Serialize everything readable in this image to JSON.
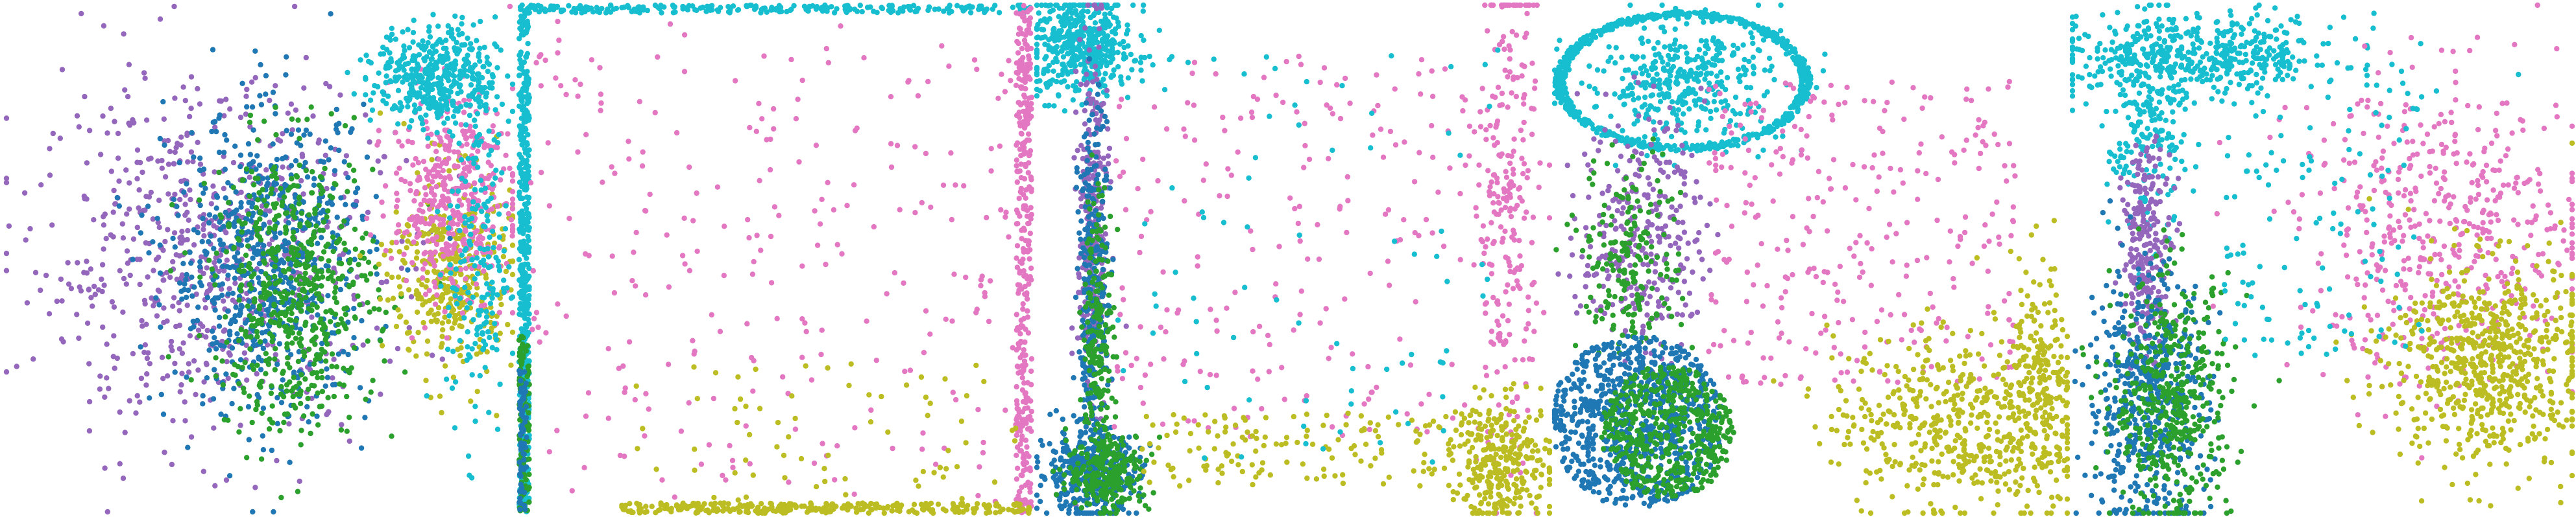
{
  "figure": {
    "panel_count": 5,
    "axes_visible": false,
    "background": "#ffffff"
  },
  "palette": {
    "blue": "#1f77b4",
    "green": "#2ca02c",
    "purple": "#9467bd",
    "pink": "#e377c2",
    "olive": "#bcbd22",
    "cyan": "#17becf"
  },
  "chart_data": [
    {
      "type": "scatter",
      "xlim": [
        0,
        1
      ],
      "ylim": [
        0,
        1
      ],
      "grid": false,
      "legend": "none",
      "clusters": [
        {
          "color": "purple",
          "cx": 0.4,
          "cy": 0.5,
          "sx": 0.17,
          "sy": 0.17,
          "n": 700,
          "style": "gauss"
        },
        {
          "color": "blue",
          "cx": 0.52,
          "cy": 0.49,
          "sx": 0.1,
          "sy": 0.15,
          "n": 700,
          "style": "gauss"
        },
        {
          "color": "green",
          "cx": 0.57,
          "cy": 0.44,
          "sx": 0.08,
          "sy": 0.14,
          "n": 600,
          "style": "gauss"
        },
        {
          "color": "olive",
          "cx": 0.88,
          "cy": 0.47,
          "sx": 0.06,
          "sy": 0.1,
          "n": 380,
          "style": "gauss"
        },
        {
          "color": "pink",
          "cx": 0.88,
          "cy": 0.62,
          "sx": 0.06,
          "sy": 0.1,
          "n": 420,
          "style": "gauss"
        },
        {
          "color": "cyan",
          "cx": 0.85,
          "cy": 0.86,
          "sx": 0.06,
          "sy": 0.05,
          "n": 450,
          "style": "gauss"
        },
        {
          "color": "cyan",
          "cx": 0.93,
          "cy": 0.5,
          "sx": 0.03,
          "sy": 0.18,
          "n": 200,
          "style": "gauss"
        }
      ]
    },
    {
      "type": "scatter",
      "xlim": [
        0,
        1
      ],
      "ylim": [
        0,
        1
      ],
      "grid": false,
      "legend": "none",
      "clusters": [
        {
          "color": "cyan",
          "x0": 0.0,
          "x1": 0.02,
          "y0": 0.0,
          "y1": 1.0,
          "n": 500,
          "style": "uniform"
        },
        {
          "color": "cyan",
          "x0": 0.0,
          "x1": 1.0,
          "y0": 0.985,
          "y1": 1.0,
          "n": 250,
          "style": "uniform"
        },
        {
          "color": "green",
          "x0": 0.0,
          "x1": 0.02,
          "y0": 0.0,
          "y1": 0.35,
          "n": 120,
          "style": "uniform"
        },
        {
          "color": "pink",
          "x0": 0.97,
          "x1": 1.0,
          "y0": 0.0,
          "y1": 1.0,
          "n": 350,
          "style": "uniform"
        },
        {
          "color": "pink",
          "x0": 0.02,
          "x1": 0.97,
          "y0": 0.02,
          "y1": 0.98,
          "n": 260,
          "style": "uniform"
        },
        {
          "color": "olive",
          "x0": 0.2,
          "x1": 1.0,
          "y0": 0.0,
          "y1": 0.02,
          "n": 300,
          "style": "uniform"
        },
        {
          "color": "olive",
          "x0": 0.2,
          "x1": 0.97,
          "y0": 0.02,
          "y1": 0.3,
          "n": 70,
          "style": "uniform"
        },
        {
          "color": "blue",
          "x0": 0.0,
          "x1": 0.015,
          "y0": 0.0,
          "y1": 0.3,
          "n": 60,
          "style": "uniform"
        }
      ]
    },
    {
      "type": "scatter",
      "xlim": [
        0,
        1
      ],
      "ylim": [
        0,
        1
      ],
      "grid": false,
      "legend": "none",
      "clusters": [
        {
          "color": "cyan",
          "cx": 0.09,
          "cy": 0.92,
          "sx": 0.05,
          "sy": 0.05,
          "n": 500,
          "style": "gauss"
        },
        {
          "color": "purple",
          "cx": 0.11,
          "cy": 0.55,
          "sx": 0.015,
          "sy": 0.2,
          "n": 300,
          "style": "gauss"
        },
        {
          "color": "blue",
          "cx": 0.11,
          "cy": 0.4,
          "sx": 0.015,
          "sy": 0.2,
          "n": 300,
          "style": "gauss"
        },
        {
          "color": "green",
          "cx": 0.12,
          "cy": 0.35,
          "sx": 0.015,
          "sy": 0.15,
          "n": 200,
          "style": "gauss"
        },
        {
          "color": "blue",
          "cx": 0.1,
          "cy": 0.08,
          "sx": 0.05,
          "sy": 0.04,
          "n": 350,
          "style": "gauss"
        },
        {
          "color": "green",
          "cx": 0.14,
          "cy": 0.08,
          "sx": 0.04,
          "sy": 0.04,
          "n": 250,
          "style": "gauss"
        },
        {
          "color": "pink",
          "cx": 0.92,
          "cy": 0.6,
          "sx": 0.03,
          "sy": 0.25,
          "n": 250,
          "style": "gauss"
        },
        {
          "color": "pink",
          "x0": 0.15,
          "x1": 0.9,
          "y0": 0.15,
          "y1": 0.9,
          "n": 220,
          "style": "uniform"
        },
        {
          "color": "olive",
          "cx": 0.91,
          "cy": 0.1,
          "sx": 0.05,
          "sy": 0.06,
          "n": 300,
          "style": "gauss"
        },
        {
          "color": "olive",
          "x0": 0.2,
          "x1": 0.9,
          "y0": 0.05,
          "y1": 0.2,
          "n": 150,
          "style": "uniform"
        },
        {
          "color": "cyan",
          "x0": 0.15,
          "x1": 0.9,
          "y0": 0.1,
          "y1": 0.92,
          "n": 80,
          "style": "uniform"
        }
      ]
    },
    {
      "type": "scatter",
      "xlim": [
        0,
        1
      ],
      "ylim": [
        0,
        1
      ],
      "grid": false,
      "legend": "none",
      "clusters": [
        {
          "color": "cyan",
          "cx": 0.25,
          "cy": 0.85,
          "r": 0.25,
          "n": 700,
          "style": "ring"
        },
        {
          "color": "cyan",
          "cx": 0.25,
          "cy": 0.85,
          "sx": 0.1,
          "sy": 0.06,
          "n": 400,
          "style": "gauss"
        },
        {
          "color": "purple",
          "cx": 0.17,
          "cy": 0.55,
          "sx": 0.06,
          "sy": 0.12,
          "n": 300,
          "style": "gauss"
        },
        {
          "color": "green",
          "cx": 0.15,
          "cy": 0.5,
          "sx": 0.05,
          "sy": 0.1,
          "n": 200,
          "style": "gauss"
        },
        {
          "color": "blue",
          "cx": 0.16,
          "cy": 0.18,
          "r": 0.17,
          "n": 800,
          "style": "disk"
        },
        {
          "color": "green",
          "cx": 0.22,
          "cy": 0.16,
          "r": 0.13,
          "n": 500,
          "style": "disk"
        },
        {
          "color": "pink",
          "x0": 0.3,
          "x1": 0.9,
          "y0": 0.25,
          "y1": 0.85,
          "n": 300,
          "style": "uniform"
        },
        {
          "color": "olive",
          "cx": 0.78,
          "cy": 0.18,
          "sx": 0.12,
          "sy": 0.09,
          "n": 500,
          "style": "gauss"
        },
        {
          "color": "olive",
          "cx": 0.95,
          "cy": 0.25,
          "sx": 0.03,
          "sy": 0.12,
          "n": 200,
          "style": "gauss"
        }
      ]
    },
    {
      "type": "scatter",
      "xlim": [
        0,
        1
      ],
      "ylim": [
        0,
        1
      ],
      "grid": false,
      "legend": "none",
      "clusters": [
        {
          "color": "cyan",
          "cx": 0.25,
          "cy": 0.9,
          "sx": 0.15,
          "sy": 0.04,
          "n": 500,
          "style": "gauss"
        },
        {
          "color": "cyan",
          "cx": 0.15,
          "cy": 0.75,
          "sx": 0.04,
          "sy": 0.1,
          "n": 200,
          "style": "gauss"
        },
        {
          "color": "purple",
          "cx": 0.15,
          "cy": 0.52,
          "sx": 0.025,
          "sy": 0.1,
          "n": 250,
          "style": "gauss"
        },
        {
          "color": "blue",
          "cx": 0.15,
          "cy": 0.22,
          "sx": 0.06,
          "sy": 0.13,
          "n": 550,
          "style": "gauss"
        },
        {
          "color": "green",
          "cx": 0.2,
          "cy": 0.22,
          "sx": 0.06,
          "sy": 0.12,
          "n": 450,
          "style": "gauss"
        },
        {
          "color": "pink",
          "cx": 0.75,
          "cy": 0.55,
          "sx": 0.15,
          "sy": 0.15,
          "n": 500,
          "style": "gauss"
        },
        {
          "color": "olive",
          "cx": 0.83,
          "cy": 0.3,
          "sx": 0.1,
          "sy": 0.1,
          "n": 700,
          "style": "gauss"
        },
        {
          "color": "cyan",
          "x0": 0.3,
          "x1": 0.7,
          "y0": 0.3,
          "y1": 0.85,
          "n": 120,
          "style": "uniform"
        }
      ]
    }
  ]
}
